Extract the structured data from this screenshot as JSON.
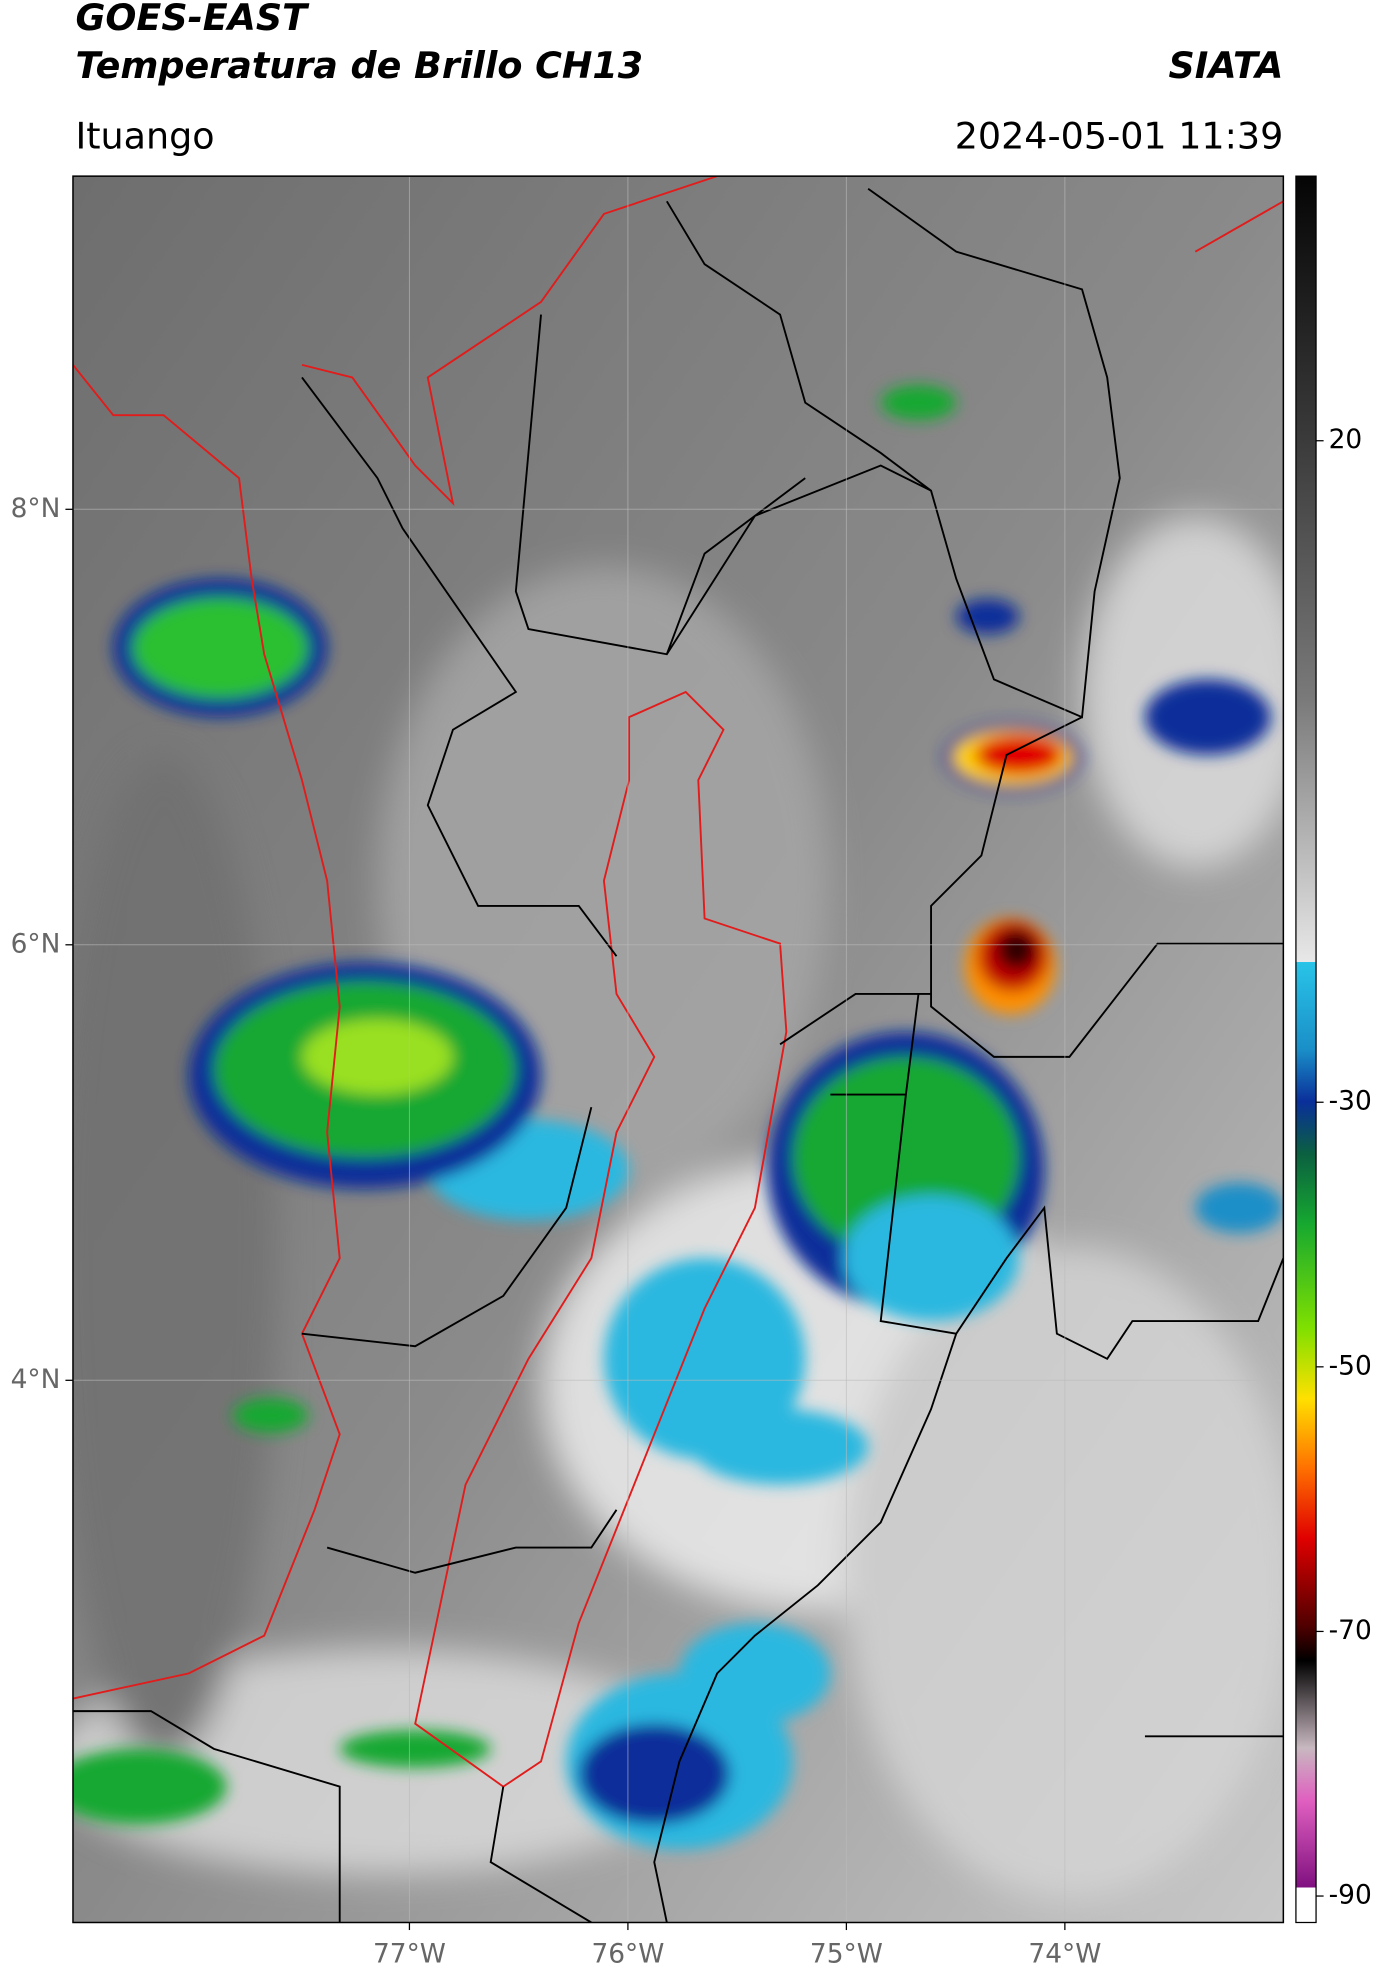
{
  "header": {
    "satellite": "GOES-EAST",
    "product": "Temperatura de Brillo CH13",
    "source": "SIATA",
    "location": "Ituango",
    "datetime": "2024-05-01 11:39"
  },
  "map": {
    "lonlim": [
      -78.54,
      -73.0
    ],
    "latlim": [
      1.51,
      9.53
    ],
    "lonticks": [
      {
        "value": -77,
        "label": "77°W"
      },
      {
        "value": -76,
        "label": "76°W"
      },
      {
        "value": -75,
        "label": "75°W"
      },
      {
        "value": -74,
        "label": "74°W"
      }
    ],
    "latticks": [
      {
        "value": 8,
        "label": "8°N"
      },
      {
        "value": 6,
        "label": "6°N"
      },
      {
        "value": 4,
        "label": "4°N"
      }
    ],
    "grid": true
  },
  "colorbar": {
    "lim": [
      -92,
      40
    ],
    "ticks": [
      20,
      -30,
      -50,
      -70,
      -90
    ]
  }
}
